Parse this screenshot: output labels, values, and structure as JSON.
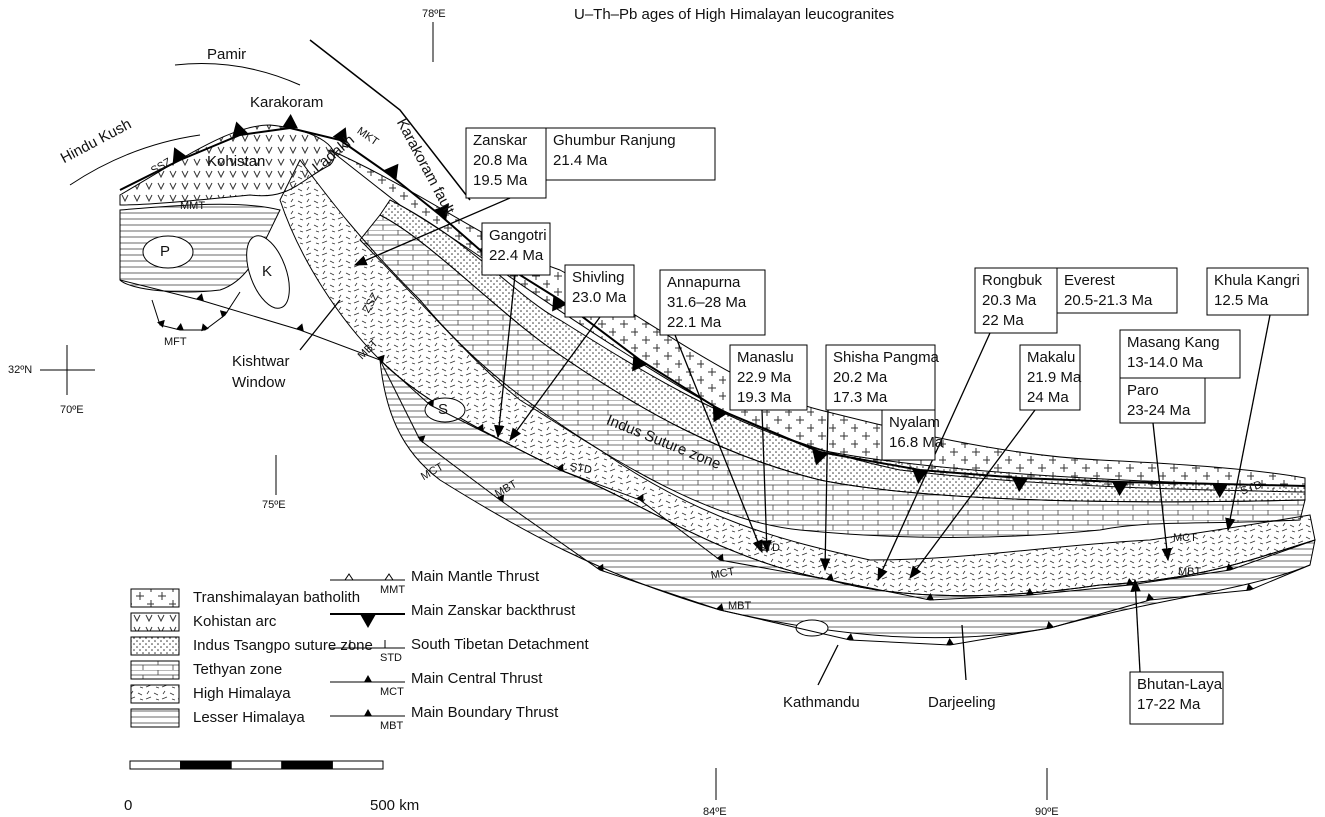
{
  "title": "U–Th–Pb ages of High Himalayan leucogranites",
  "coordinates": [
    "78ºE",
    "32ºN",
    "70ºE",
    "75ºE",
    "84ºE",
    "90ºE"
  ],
  "map_labels": [
    "Pamir",
    "Karakoram",
    "Hindu Kush",
    "Kohistan",
    "Ladakh",
    "Karakoram fault",
    "SSZ",
    "MKT",
    "MMT",
    "P",
    "K",
    "ZSZ",
    "MFT",
    "Kishtwar",
    "Window",
    "MBT",
    "S",
    "MCT",
    "STD",
    "Indus Suture zone",
    "MBT",
    "MCT",
    "STD",
    "MBT",
    "Kathmandu",
    "Darjeeling",
    "MCT",
    "MBT",
    "STD"
  ],
  "boxes": [
    {
      "lines": [
        "Zanskar",
        "20.8 Ma",
        "19.5 Ma"
      ]
    },
    {
      "lines": [
        "Ghumbur Ranjung",
        "21.4 Ma"
      ]
    },
    {
      "lines": [
        "Gangotri",
        "22.4 Ma"
      ]
    },
    {
      "lines": [
        "Shivling",
        "23.0 Ma"
      ]
    },
    {
      "lines": [
        "Annapurna",
        "31.6–28 Ma",
        "22.1 Ma"
      ]
    },
    {
      "lines": [
        "Manaslu",
        "22.9 Ma",
        "19.3 Ma"
      ]
    },
    {
      "lines": [
        "Shisha Pangma",
        "20.2 Ma",
        "17.3 Ma"
      ]
    },
    {
      "lines": [
        "Nyalam",
        "16.8 Ma"
      ]
    },
    {
      "lines": [
        "Rongbuk",
        "20.3 Ma",
        "22 Ma"
      ]
    },
    {
      "lines": [
        "Everest",
        "20.5-21.3 Ma"
      ]
    },
    {
      "lines": [
        "Makalu",
        "21.9 Ma",
        "24 Ma"
      ]
    },
    {
      "lines": [
        "Khula Kangri",
        "12.5 Ma"
      ]
    },
    {
      "lines": [
        "Masang Kang",
        "13-14.0 Ma"
      ]
    },
    {
      "lines": [
        "Paro",
        "23-24 Ma"
      ]
    },
    {
      "lines": [
        "Bhutan-Laya",
        "17-22 Ma"
      ]
    }
  ],
  "legend_units": [
    "Transhimalayan batholith",
    "Kohistan arc",
    "Indus Tsangpo suture zone",
    "Tethyan zone",
    "High Himalaya",
    "Lesser Himalaya"
  ],
  "legend_faults": [
    {
      "name": "Main Mantle Thrust",
      "abbr": "MMT"
    },
    {
      "name": "Main Zanskar backthrust"
    },
    {
      "name": "South Tibetan Detachment",
      "abbr": "STD"
    },
    {
      "name": "Main Central Thrust",
      "abbr": "MCT"
    },
    {
      "name": "Main Boundary Thrust",
      "abbr": "MBT"
    }
  ],
  "scale": [
    "0",
    "500 km"
  ]
}
